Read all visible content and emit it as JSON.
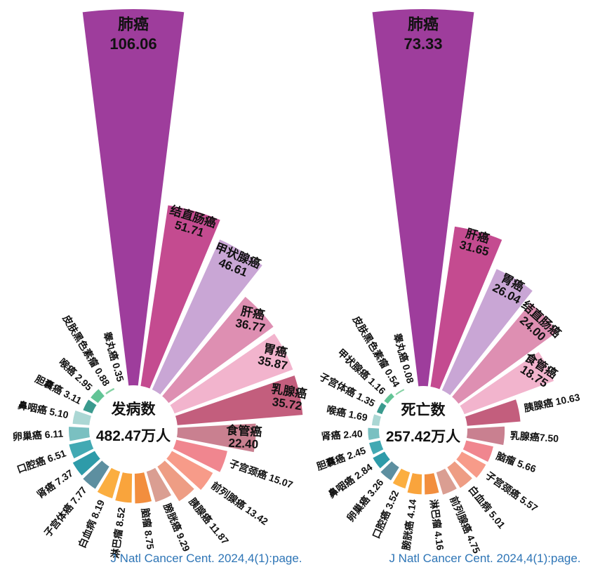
{
  "palette": [
    "#9E3D9C",
    "#C44B90",
    "#C9A6D5",
    "#DE8FB2",
    "#F2B4CD",
    "#C35E7D",
    "#C98090",
    "#F0868F",
    "#F79B89",
    "#EE9D84",
    "#DA9E92",
    "#F28E3E",
    "#F9A43C",
    "#FBAE40",
    "#5D8FA0",
    "#2E9BA9",
    "#42A9B3",
    "#7AC0C1",
    "#ABD7D4",
    "#3A9A8E",
    "#62C496",
    "#85D2A4",
    "#3FBF51"
  ],
  "caption_color": "#2E75B6",
  "label_color": "#111111",
  "chart_data": [
    {
      "type": "rose",
      "title": "发病数",
      "total_label": "482.47万人",
      "caption": "J Natl Cancer Cent. 2024,4(1):page.",
      "legend_position": "none",
      "grid": false,
      "slices": [
        {
          "name": "肺癌",
          "value": 106.06,
          "text": "106.06"
        },
        {
          "name": "结直肠癌",
          "value": 51.71,
          "text": "51.71"
        },
        {
          "name": "甲状腺癌",
          "value": 46.61,
          "text": "46.61"
        },
        {
          "name": "肝癌",
          "value": 36.77,
          "text": "36.77"
        },
        {
          "name": "胃癌",
          "value": 35.87,
          "text": "35.87"
        },
        {
          "name": "乳腺癌",
          "value": 35.72,
          "text": "35.72"
        },
        {
          "name": "食管癌",
          "value": 22.4,
          "text": "22.40"
        },
        {
          "name": "子宫颈癌",
          "value": 15.07,
          "text": "15.07"
        },
        {
          "name": "前列腺癌",
          "value": 13.42,
          "text": "13.42"
        },
        {
          "name": "胰腺癌",
          "value": 11.87,
          "text": "11.87"
        },
        {
          "name": "膀胱癌",
          "value": 9.29,
          "text": "9.29"
        },
        {
          "name": "脑瘤",
          "value": 8.75,
          "text": "8.75"
        },
        {
          "name": "淋巴瘤",
          "value": 8.52,
          "text": "8.52"
        },
        {
          "name": "白血病",
          "value": 8.19,
          "text": "8.19"
        },
        {
          "name": "子宫体癌",
          "value": 7.77,
          "text": "7.77"
        },
        {
          "name": "肾癌",
          "value": 7.37,
          "text": "7.37"
        },
        {
          "name": "口腔癌",
          "value": 6.51,
          "text": "6.51"
        },
        {
          "name": "卵巢癌",
          "value": 6.11,
          "text": "6.11"
        },
        {
          "name": "鼻咽癌",
          "value": 5.1,
          "text": "5.10"
        },
        {
          "name": "胆囊癌",
          "value": 3.11,
          "text": "3.11"
        },
        {
          "name": "喉癌",
          "value": 2.95,
          "text": "2.95"
        },
        {
          "name": "皮肤黑色素瘤",
          "value": 0.88,
          "text": "0.88"
        },
        {
          "name": "睾丸癌",
          "value": 0.35,
          "text": "0.35"
        }
      ]
    },
    {
      "type": "rose",
      "title": "死亡数",
      "total_label": "257.42万人",
      "caption": "J Natl Cancer Cent. 2024,4(1):page.",
      "legend_position": "none",
      "grid": false,
      "slices": [
        {
          "name": "肺癌",
          "value": 73.33,
          "text": "73.33"
        },
        {
          "name": "肝癌",
          "value": 31.65,
          "text": "31.65"
        },
        {
          "name": "胃癌",
          "value": 26.04,
          "text": "26.04"
        },
        {
          "name": "结直肠癌",
          "value": 24.0,
          "text": "24.00"
        },
        {
          "name": "食管癌",
          "value": 18.75,
          "text": "18.75"
        },
        {
          "name": "胰腺癌",
          "value": 10.63,
          "text": "10.63"
        },
        {
          "name": "乳腺癌",
          "value": 7.5,
          "text": "7.50",
          "display": "乳腺癌7.50"
        },
        {
          "name": "脑瘤",
          "value": 5.66,
          "text": "5.66"
        },
        {
          "name": "子宫颈癌",
          "value": 5.57,
          "text": "5.57"
        },
        {
          "name": "白血病",
          "value": 5.01,
          "text": "5.01"
        },
        {
          "name": "前列腺癌",
          "value": 4.75,
          "text": "4.75"
        },
        {
          "name": "淋巴瘤",
          "value": 4.16,
          "text": "4.16"
        },
        {
          "name": "膀胱癌",
          "value": 4.14,
          "text": "4.14"
        },
        {
          "name": "口腔癌",
          "value": 3.52,
          "text": "3.52"
        },
        {
          "name": "卵巢癌",
          "value": 3.26,
          "text": "3.26"
        },
        {
          "name": "鼻咽癌",
          "value": 2.84,
          "text": "2.84"
        },
        {
          "name": "胆囊癌",
          "value": 2.45,
          "text": "2.45"
        },
        {
          "name": "肾癌",
          "value": 2.4,
          "text": "2.40"
        },
        {
          "name": "喉癌",
          "value": 1.69,
          "text": "1.69"
        },
        {
          "name": "子宫体癌",
          "value": 1.35,
          "text": "1.35"
        },
        {
          "name": "甲状腺癌",
          "value": 1.16,
          "text": "1.16"
        },
        {
          "name": "皮肤黑色素瘤",
          "value": 0.54,
          "text": "0.54"
        },
        {
          "name": "睾丸癌",
          "value": 0.08,
          "text": "0.08"
        }
      ]
    }
  ]
}
